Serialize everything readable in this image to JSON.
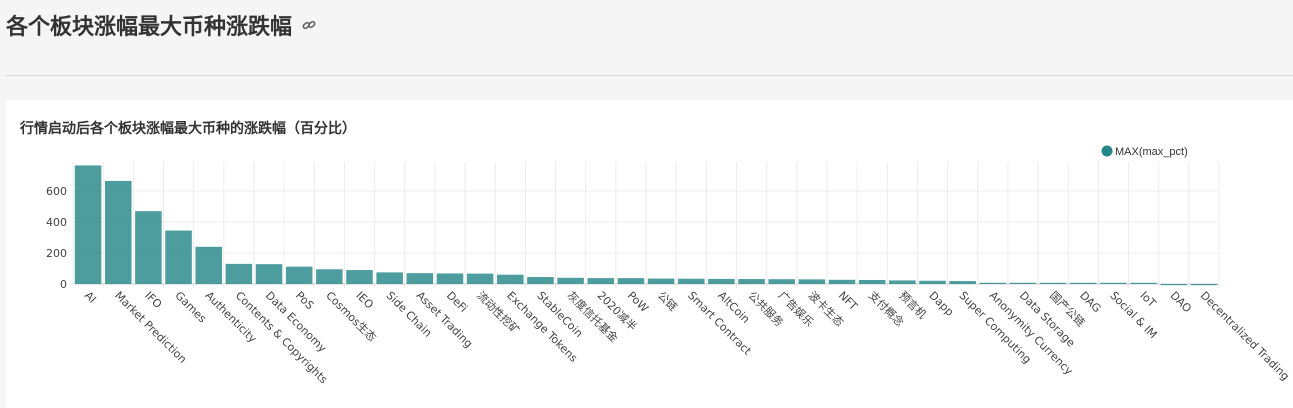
{
  "page": {
    "title": "各个板块涨幅最大币种涨跌幅"
  },
  "chart_data": {
    "type": "bar",
    "title": "行情启动后各个板块涨幅最大币种的涨跌幅（百分比）",
    "legend": {
      "label": "MAX(max_pct)",
      "position": "top-right"
    },
    "color": "#26878a",
    "ylim": [
      -20,
      770
    ],
    "yticks": [
      0,
      200,
      400,
      600
    ],
    "grid": true,
    "categories": [
      "AI",
      "Market Prediction",
      "IFO",
      "Games",
      "Authenticity",
      "Contents & Copyrights",
      "Data Economy",
      "PoS",
      "Cosmos生态",
      "IEO",
      "Side Chain",
      "Asset Trading",
      "DeFi",
      "流动性挖矿",
      "Exchange Tokens",
      "StableCoin",
      "灰度信托基金",
      "2020减半",
      "PoW",
      "公链",
      "Smart Contract",
      "AltCoin",
      "公共服务",
      "广告娱乐",
      "波卡生态",
      "NFT",
      "支付概念",
      "预言机",
      "Dapp",
      "Super Computing",
      "Anonymity Currency",
      "Data Storage",
      "国产公链",
      "DAG",
      "Social & IM",
      "IoT",
      "DAO",
      "Decentralized Trading"
    ],
    "values": [
      765,
      665,
      470,
      345,
      240,
      130,
      128,
      112,
      95,
      90,
      75,
      70,
      68,
      67,
      60,
      45,
      40,
      38,
      38,
      35,
      34,
      33,
      32,
      31,
      30,
      27,
      26,
      23,
      21,
      19,
      2,
      1,
      1,
      0,
      0,
      0,
      -2,
      -3
    ]
  }
}
